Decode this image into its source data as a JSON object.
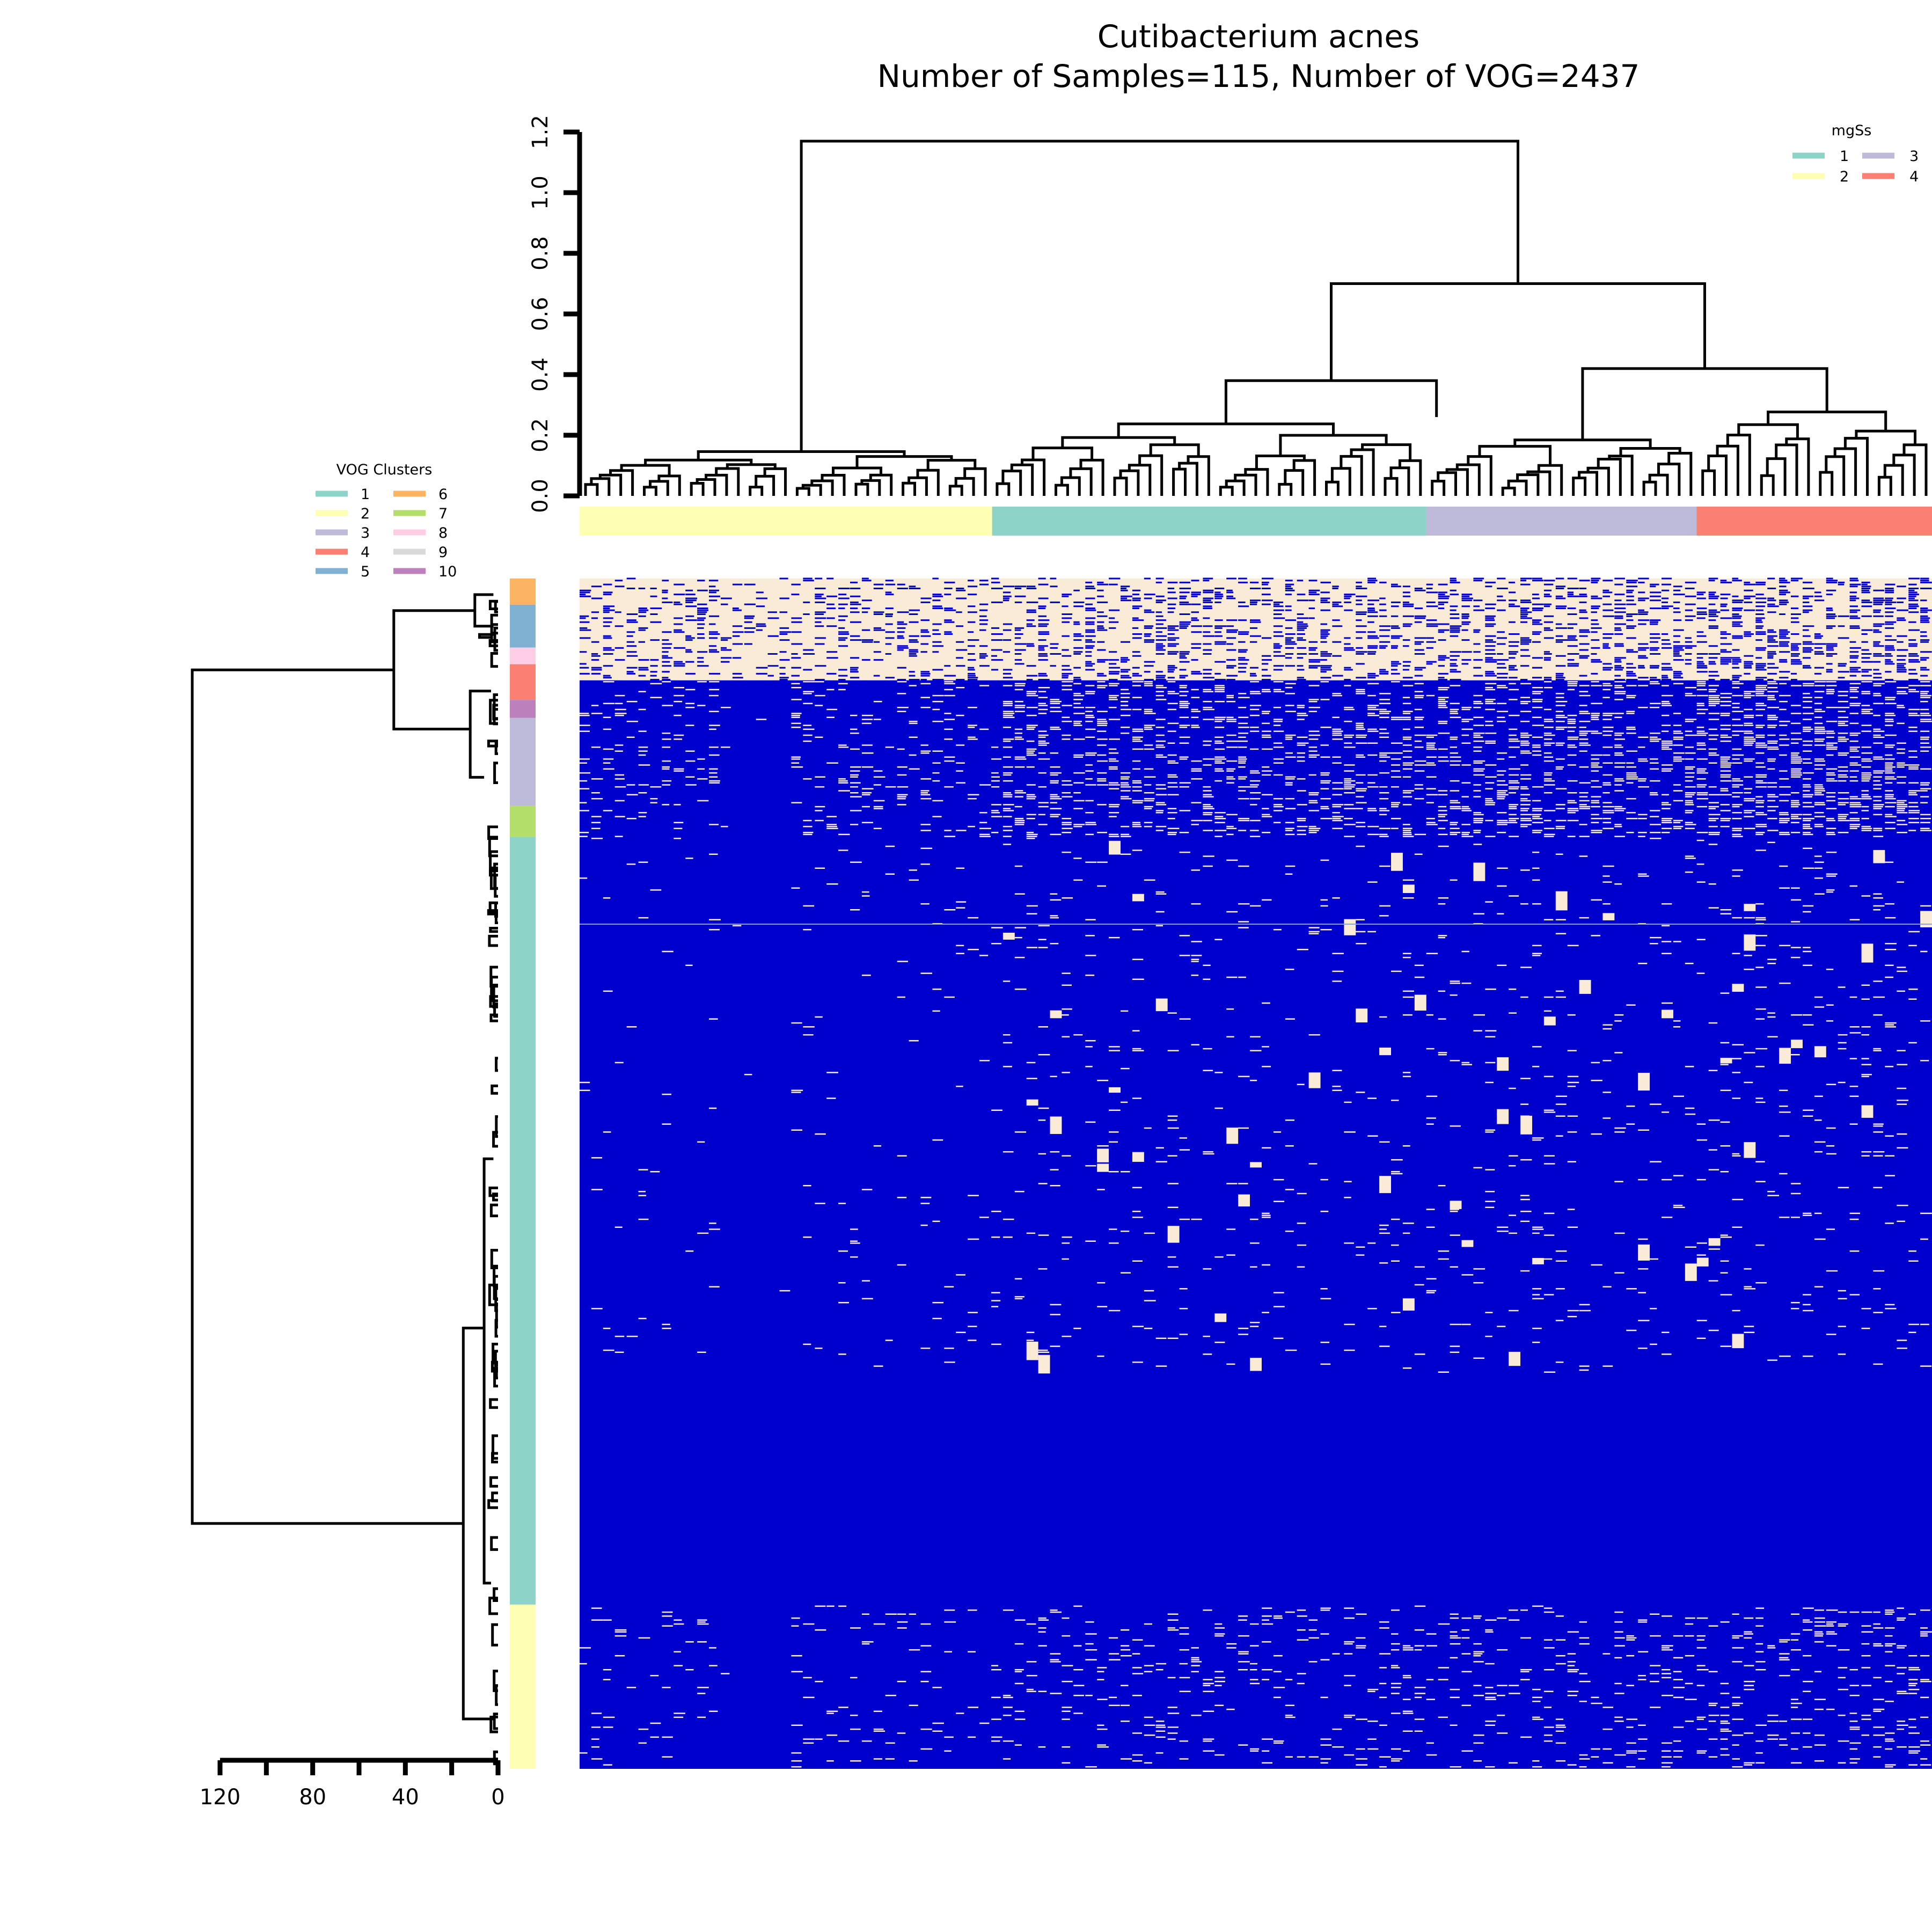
{
  "chart_data": {
    "type": "heatmap",
    "title": "Cutibacterium acnes",
    "subtitle": "Number of Samples=115, Number of VOG=2437",
    "n_samples": 115,
    "n_vog": 2437,
    "heatmap_colors": {
      "present": "#0000cc",
      "absent": "#faebd7"
    },
    "column_dendrogram": {
      "axis_ticks": [
        0.0,
        0.2,
        0.4,
        0.6,
        0.8,
        1.0,
        1.2
      ],
      "ylim": [
        0,
        1.2
      ],
      "root_height": 1.17,
      "major_merges": [
        1.17,
        0.7,
        0.42,
        0.38,
        0.16
      ]
    },
    "row_dendrogram": {
      "axis_ticks": [
        120,
        80,
        40,
        0
      ],
      "root_height": 132
    },
    "mgSs_legend": {
      "title": "mgSs",
      "entries": [
        {
          "label": "1",
          "color": "#8dd3c7"
        },
        {
          "label": "2",
          "color": "#ffffb3"
        },
        {
          "label": "3",
          "color": "#bebada"
        },
        {
          "label": "4",
          "color": "#fb8072"
        }
      ]
    },
    "mgSs_bar": [
      {
        "group": "2",
        "fraction": 0.305
      },
      {
        "group": "1",
        "fraction": 0.321
      },
      {
        "group": "3",
        "fraction": 0.2
      },
      {
        "group": "4",
        "fraction": 0.174
      }
    ],
    "vog_legend": {
      "title": "VOG Clusters",
      "entries": [
        {
          "label": "1",
          "color": "#8dd3c7"
        },
        {
          "label": "2",
          "color": "#ffffb3"
        },
        {
          "label": "3",
          "color": "#bebada"
        },
        {
          "label": "4",
          "color": "#fb8072"
        },
        {
          "label": "5",
          "color": "#80b1d3"
        },
        {
          "label": "6",
          "color": "#fdb462"
        },
        {
          "label": "7",
          "color": "#b3de69"
        },
        {
          "label": "8",
          "color": "#fccde5"
        },
        {
          "label": "9",
          "color": "#d9d9d9"
        },
        {
          "label": "10",
          "color": "#bc80bd"
        }
      ]
    },
    "vog_bar": [
      {
        "cluster": "6",
        "fraction": 0.022
      },
      {
        "cluster": "5",
        "fraction": 0.036
      },
      {
        "cluster": "8",
        "fraction": 0.014
      },
      {
        "cluster": "4",
        "fraction": 0.03
      },
      {
        "cluster": "10",
        "fraction": 0.015
      },
      {
        "cluster": "3",
        "fraction": 0.074
      },
      {
        "cluster": "7",
        "fraction": 0.026
      },
      {
        "cluster": "1",
        "fraction": 0.645
      },
      {
        "cluster": "2",
        "fraction": 0.138
      }
    ]
  }
}
